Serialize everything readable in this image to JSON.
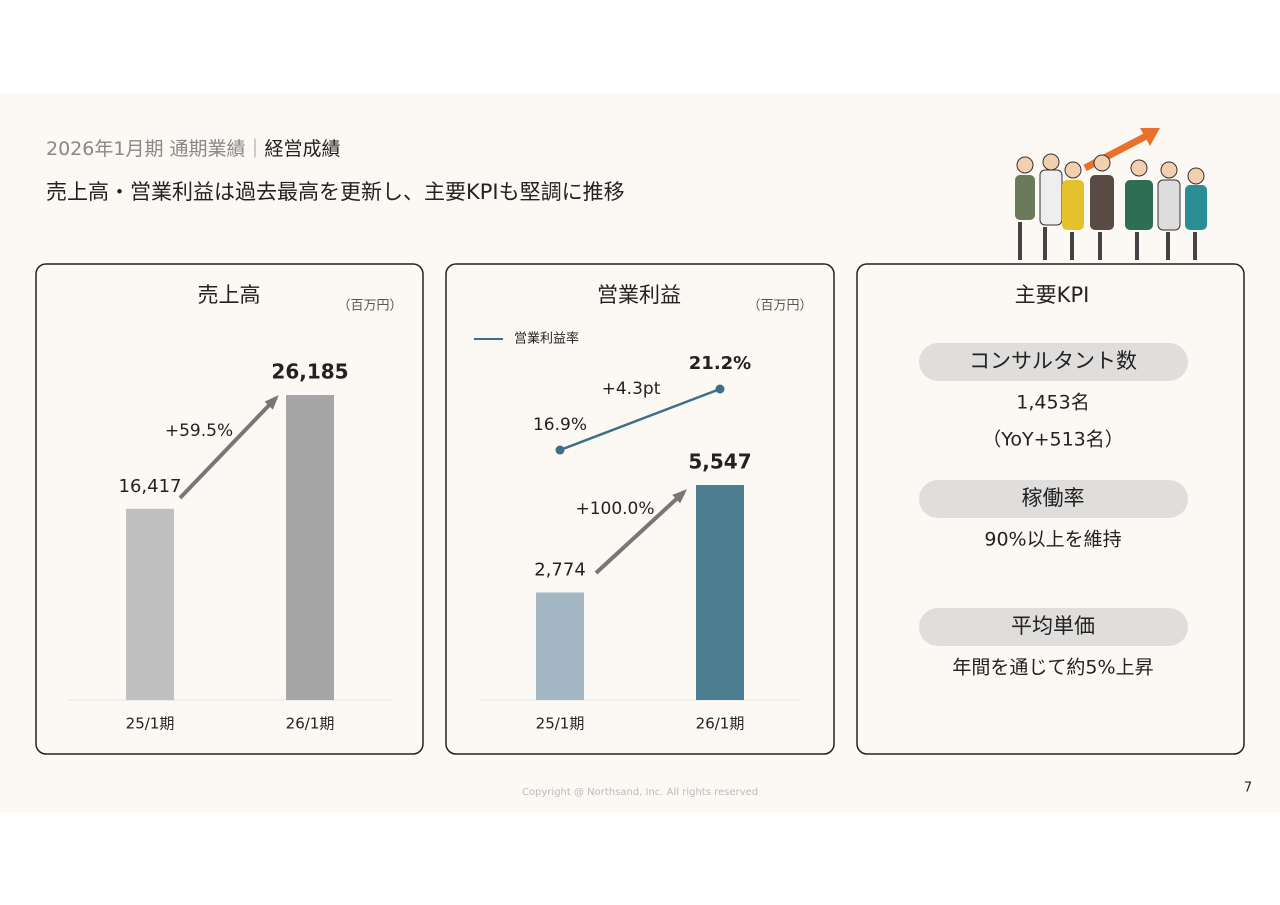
{
  "header": {
    "section": "2026年1月期 通期業績｜",
    "topic": "経営成績",
    "headline": "売上高・営業利益は過去最高を更新し、主要KPIも堅調に推移"
  },
  "chart_data": [
    {
      "type": "bar",
      "title": "売上高",
      "unit": "（百万円）",
      "categories": [
        "25/1期",
        "26/1期"
      ],
      "values": [
        16417,
        26185
      ],
      "value_labels": [
        "16,417",
        "26,185"
      ],
      "colors": [
        "#c0c0c0",
        "#a6a6a6"
      ],
      "annotations": [
        "+59.5%"
      ]
    },
    {
      "type": "bar",
      "title": "営業利益",
      "unit": "（百万円）",
      "categories": [
        "25/1期",
        "26/1期"
      ],
      "values": [
        2774,
        5547
      ],
      "value_labels": [
        "2,774",
        "5,547"
      ],
      "colors": [
        "#a3b8c4",
        "#4e7e92"
      ],
      "annotations": [
        "+100.0%"
      ],
      "line_series": {
        "name": "営業利益率",
        "color": "#3f6f86",
        "values": [
          16.9,
          21.2
        ],
        "value_labels": [
          "16.9%",
          "21.2%"
        ],
        "annotations": [
          "+4.3pt"
        ]
      }
    }
  ],
  "kpi": {
    "title": "主要KPI",
    "items": [
      {
        "label": "コンサルタント数",
        "lines": [
          "1,453名",
          "（YoY+513名）"
        ]
      },
      {
        "label": "稼働率",
        "lines": [
          "90%以上を維持"
        ]
      },
      {
        "label": "平均単価",
        "lines": [
          "年間を通じて約5%上昇"
        ]
      }
    ]
  },
  "footer": {
    "copyright": "Copyright @ Northsand, Inc. All rights reserved",
    "page": "7"
  }
}
